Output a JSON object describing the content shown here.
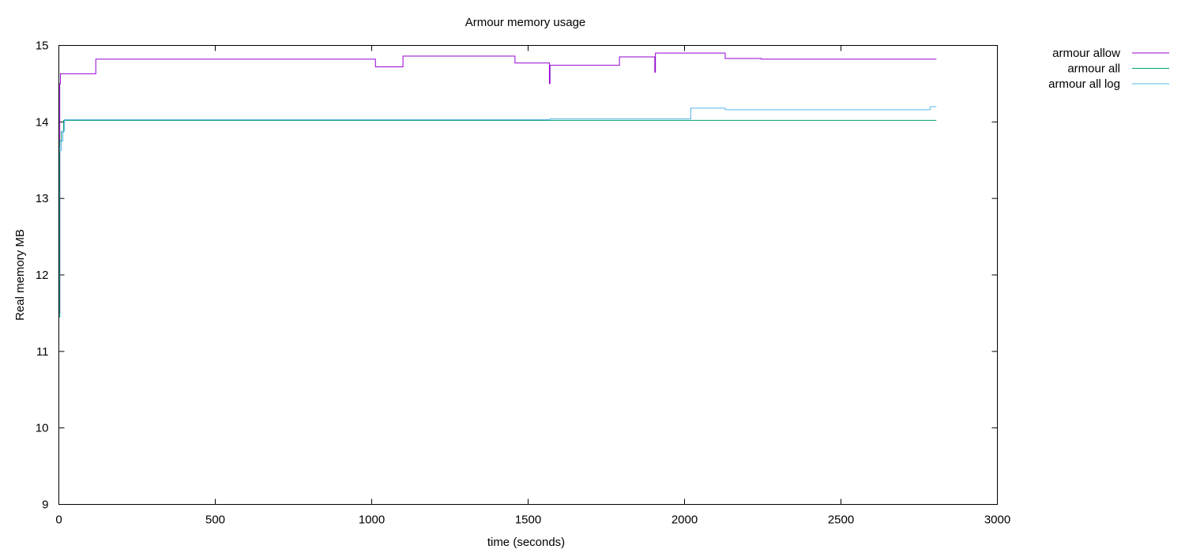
{
  "chart_data": {
    "type": "line",
    "title": "Armour memory usage",
    "xlabel": "time (seconds)",
    "ylabel": "Real memory MB",
    "xlim": [
      0,
      3000
    ],
    "ylim": [
      9,
      15
    ],
    "xticks": [
      0,
      500,
      1000,
      1500,
      2000,
      2500,
      3000
    ],
    "yticks": [
      9,
      10,
      11,
      12,
      13,
      14,
      15
    ],
    "grid": false,
    "legend_position": "outside-top-right",
    "step": true,
    "series": [
      {
        "name": "armour allow",
        "color": "#9400d3",
        "points": [
          [
            0,
            11.5
          ],
          [
            3,
            14.5
          ],
          [
            5,
            14.63
          ],
          [
            118,
            14.82
          ],
          [
            1012,
            14.72
          ],
          [
            1100,
            14.86
          ],
          [
            1458,
            14.77
          ],
          [
            1568,
            14.5
          ],
          [
            1570,
            14.74
          ],
          [
            1792,
            14.85
          ],
          [
            1905,
            14.65
          ],
          [
            1907,
            14.9
          ],
          [
            2130,
            14.83
          ],
          [
            2245,
            14.82
          ],
          [
            2805,
            14.82
          ]
        ]
      },
      {
        "name": "armour all",
        "color": "#009e73",
        "points": [
          [
            0,
            11.45
          ],
          [
            3,
            13.75
          ],
          [
            8,
            13.87
          ],
          [
            15,
            14.02
          ],
          [
            2805,
            14.02
          ]
        ]
      },
      {
        "name": "armour all log",
        "color": "#56b4e9",
        "points": [
          [
            0,
            13.65
          ],
          [
            3,
            13.63
          ],
          [
            8,
            13.75
          ],
          [
            13,
            13.88
          ],
          [
            18,
            14.03
          ],
          [
            1570,
            14.04
          ],
          [
            2020,
            14.18
          ],
          [
            2130,
            14.16
          ],
          [
            2780,
            14.16
          ],
          [
            2785,
            14.2
          ],
          [
            2805,
            14.2
          ]
        ]
      }
    ]
  }
}
